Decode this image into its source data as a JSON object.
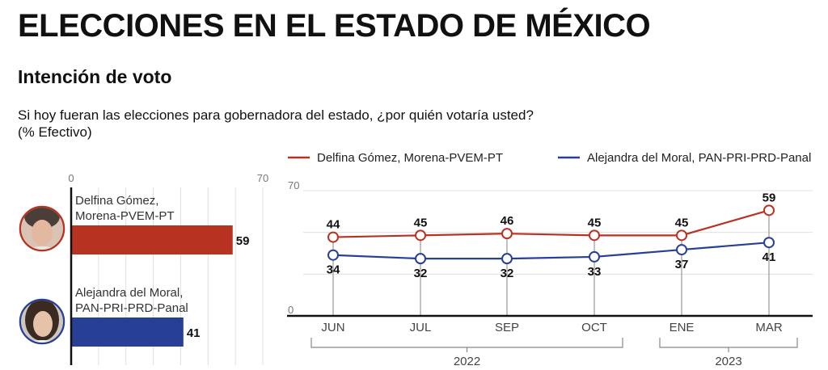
{
  "title": "ELECCIONES EN EL ESTADO DE MÉXICO",
  "subtitle": "Intención de voto",
  "question": "Si hoy fueran las elecciones para gobernadora del estado, ¿por quién votaría usted? (% Efectivo)",
  "colors": {
    "morena": "#b83222",
    "pan": "#283f96",
    "grid": "#e0e0e0",
    "axis": "#111111"
  },
  "chart_data": [
    {
      "type": "bar",
      "orientation": "horizontal",
      "xlim": [
        0,
        70
      ],
      "tick_labels": [
        "0",
        "70"
      ],
      "grid": true,
      "categories": [
        {
          "line1": "Delfina Gómez,",
          "line2": "Morena-PVEM-PT",
          "avatar": "avatar-delfina-gomez",
          "color_key": "morena"
        },
        {
          "line1": "Alejandra del Moral,",
          "line2": "PAN-PRI-PRD-Panal",
          "avatar": "avatar-alejandra-del-moral",
          "color_key": "pan"
        }
      ],
      "values": [
        59,
        41
      ],
      "value_labels": [
        "59",
        "41"
      ]
    },
    {
      "type": "line",
      "ylim": [
        0,
        70
      ],
      "y_tick_labels": [
        "0",
        "70"
      ],
      "grid": true,
      "legend_position": "top",
      "categories": [
        "JUN",
        "JUL",
        "SEP",
        "OCT",
        "ENE",
        "MAR"
      ],
      "year_groups": [
        {
          "label": "2022",
          "from": 0,
          "to": 3
        },
        {
          "label": "2023",
          "from": 4,
          "to": 5
        }
      ],
      "series": [
        {
          "name": "Delfina Gómez, Morena-PVEM-PT",
          "color_key": "morena",
          "values": [
            44,
            45,
            46,
            45,
            45,
            59
          ],
          "labels": [
            "44",
            "45",
            "46",
            "45",
            "45",
            "59"
          ],
          "label_side": "above"
        },
        {
          "name": "Alejandra del Moral, PAN-PRI-PRD-Panal",
          "color_key": "pan",
          "values": [
            34,
            32,
            32,
            33,
            37,
            41
          ],
          "labels": [
            "34",
            "32",
            "32",
            "33",
            "37",
            "41"
          ],
          "label_side": "below"
        }
      ]
    }
  ]
}
